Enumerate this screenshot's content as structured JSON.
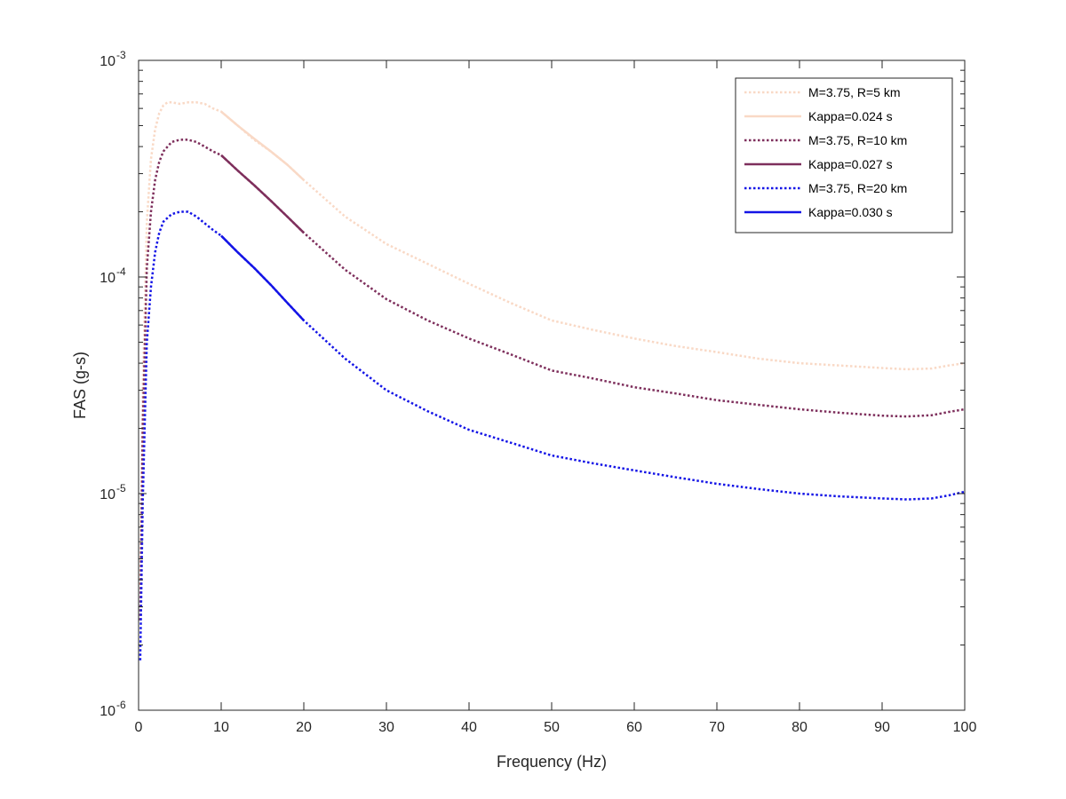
{
  "chart_data": {
    "type": "line",
    "xlabel": "Frequency (Hz)",
    "ylabel": "FAS (g-s)",
    "xlim": [
      0,
      100
    ],
    "ylim": [
      1e-06,
      0.001
    ],
    "yscale": "log",
    "grid": false,
    "legend_position": "top-right",
    "x_ticks": [
      {
        "value": 0,
        "label": "0"
      },
      {
        "value": 10,
        "label": "10"
      },
      {
        "value": 20,
        "label": "20"
      },
      {
        "value": 30,
        "label": "30"
      },
      {
        "value": 40,
        "label": "40"
      },
      {
        "value": 50,
        "label": "50"
      },
      {
        "value": 60,
        "label": "60"
      },
      {
        "value": 70,
        "label": "70"
      },
      {
        "value": 80,
        "label": "80"
      },
      {
        "value": 90,
        "label": "90"
      },
      {
        "value": 100,
        "label": "100"
      }
    ],
    "y_ticks": [
      {
        "value": 1e-06,
        "base": "10",
        "exp": "-6"
      },
      {
        "value": 1e-05,
        "base": "10",
        "exp": "-5"
      },
      {
        "value": 0.0001,
        "base": "10",
        "exp": "-4"
      },
      {
        "value": 0.001,
        "base": "10",
        "exp": "-3"
      }
    ],
    "series": [
      {
        "name": "M=3.75, R=5 km",
        "color": "#F9D9C6",
        "style": "dotted",
        "points": [
          [
            0.2,
            3.8e-06
          ],
          [
            0.5,
            3e-05
          ],
          [
            1,
            0.00018
          ],
          [
            1.5,
            0.00035
          ],
          [
            2,
            0.00048
          ],
          [
            2.5,
            0.00057
          ],
          [
            3,
            0.00062
          ],
          [
            3.5,
            0.00064
          ],
          [
            4,
            0.00064
          ],
          [
            5,
            0.00063
          ],
          [
            6,
            0.00064
          ],
          [
            7,
            0.00064
          ],
          [
            8,
            0.00063
          ],
          [
            9,
            0.0006
          ],
          [
            10,
            0.00058
          ],
          [
            12,
            0.0005
          ],
          [
            14,
            0.00043
          ],
          [
            16,
            0.00038
          ],
          [
            18,
            0.00033
          ],
          [
            20,
            0.00028
          ],
          [
            25,
            0.00019
          ],
          [
            30,
            0.000142
          ],
          [
            35,
            0.000115
          ],
          [
            40,
            9.3e-05
          ],
          [
            45,
            7.6e-05
          ],
          [
            50,
            6.3e-05
          ],
          [
            55,
            5.7e-05
          ],
          [
            60,
            5.2e-05
          ],
          [
            65,
            4.8e-05
          ],
          [
            70,
            4.5e-05
          ],
          [
            75,
            4.2e-05
          ],
          [
            80,
            4e-05
          ],
          [
            85,
            3.9e-05
          ],
          [
            90,
            3.8e-05
          ],
          [
            93,
            3.75e-05
          ],
          [
            96,
            3.78e-05
          ],
          [
            98,
            3.9e-05
          ],
          [
            100,
            4e-05
          ]
        ]
      },
      {
        "name": "Kappa=0.024 s",
        "color": "#F9D9C6",
        "style": "solid",
        "points": [
          [
            10,
            0.00058
          ],
          [
            12,
            0.0005
          ],
          [
            14,
            0.000435
          ],
          [
            16,
            0.00038
          ],
          [
            18,
            0.00033
          ],
          [
            20,
            0.00028
          ]
        ]
      },
      {
        "name": "M=3.75, R=10 km",
        "color": "#7E2F5C",
        "style": "dotted",
        "points": [
          [
            0.2,
            2.6e-06
          ],
          [
            0.5,
            2e-05
          ],
          [
            1,
            0.00011
          ],
          [
            1.5,
            0.0002
          ],
          [
            2,
            0.00028
          ],
          [
            2.5,
            0.00034
          ],
          [
            3,
            0.00038
          ],
          [
            4,
            0.00042
          ],
          [
            5,
            0.00043
          ],
          [
            6,
            0.00043
          ],
          [
            7,
            0.00042
          ],
          [
            8,
            0.0004
          ],
          [
            9,
            0.00038
          ],
          [
            10,
            0.000365
          ],
          [
            12,
            0.00031
          ],
          [
            14,
            0.000265
          ],
          [
            16,
            0.000225
          ],
          [
            18,
            0.00019
          ],
          [
            20,
            0.00016
          ],
          [
            25,
            0.000108
          ],
          [
            30,
            7.9e-05
          ],
          [
            35,
            6.3e-05
          ],
          [
            40,
            5.2e-05
          ],
          [
            45,
            4.4e-05
          ],
          [
            50,
            3.7e-05
          ],
          [
            55,
            3.4e-05
          ],
          [
            60,
            3.1e-05
          ],
          [
            65,
            2.9e-05
          ],
          [
            70,
            2.7e-05
          ],
          [
            75,
            2.57e-05
          ],
          [
            80,
            2.45e-05
          ],
          [
            85,
            2.36e-05
          ],
          [
            90,
            2.29e-05
          ],
          [
            93,
            2.27e-05
          ],
          [
            96,
            2.3e-05
          ],
          [
            98,
            2.38e-05
          ],
          [
            100,
            2.45e-05
          ]
        ]
      },
      {
        "name": "Kappa=0.027 s",
        "color": "#7E2F5C",
        "style": "solid",
        "points": [
          [
            10,
            0.000365
          ],
          [
            12,
            0.00031
          ],
          [
            14,
            0.000265
          ],
          [
            16,
            0.000225
          ],
          [
            18,
            0.00019
          ],
          [
            20,
            0.00016
          ]
        ]
      },
      {
        "name": "M=3.75, R=20 km",
        "color": "#1414E6",
        "style": "dotted",
        "points": [
          [
            0.2,
            1.7e-06
          ],
          [
            0.5,
            9e-06
          ],
          [
            1,
            5e-05
          ],
          [
            1.5,
            9e-05
          ],
          [
            2,
            0.00013
          ],
          [
            2.5,
            0.00016
          ],
          [
            3,
            0.00018
          ],
          [
            4,
            0.000195
          ],
          [
            5,
            0.0002
          ],
          [
            6,
            0.0002
          ],
          [
            7,
            0.00019
          ],
          [
            8,
            0.000177
          ],
          [
            9,
            0.000165
          ],
          [
            10,
            0.000155
          ],
          [
            12,
            0.00013
          ],
          [
            14,
            0.00011
          ],
          [
            16,
            9.2e-05
          ],
          [
            18,
            7.6e-05
          ],
          [
            20,
            6.3e-05
          ],
          [
            25,
            4.2e-05
          ],
          [
            30,
            3e-05
          ],
          [
            35,
            2.4e-05
          ],
          [
            40,
            1.97e-05
          ],
          [
            45,
            1.72e-05
          ],
          [
            50,
            1.5e-05
          ],
          [
            55,
            1.38e-05
          ],
          [
            60,
            1.28e-05
          ],
          [
            65,
            1.19e-05
          ],
          [
            70,
            1.11e-05
          ],
          [
            75,
            1.05e-05
          ],
          [
            80,
            1e-05
          ],
          [
            85,
            9.7e-06
          ],
          [
            90,
            9.5e-06
          ],
          [
            93,
            9.4e-06
          ],
          [
            96,
            9.5e-06
          ],
          [
            98,
            9.8e-06
          ],
          [
            100,
            1.02e-05
          ]
        ]
      },
      {
        "name": "Kappa=0.030 s",
        "color": "#1414E6",
        "style": "solid",
        "points": [
          [
            10,
            0.000155
          ],
          [
            12,
            0.00013
          ],
          [
            14,
            0.00011
          ],
          [
            16,
            9.2e-05
          ],
          [
            18,
            7.6e-05
          ],
          [
            20,
            6.3e-05
          ]
        ]
      }
    ]
  }
}
